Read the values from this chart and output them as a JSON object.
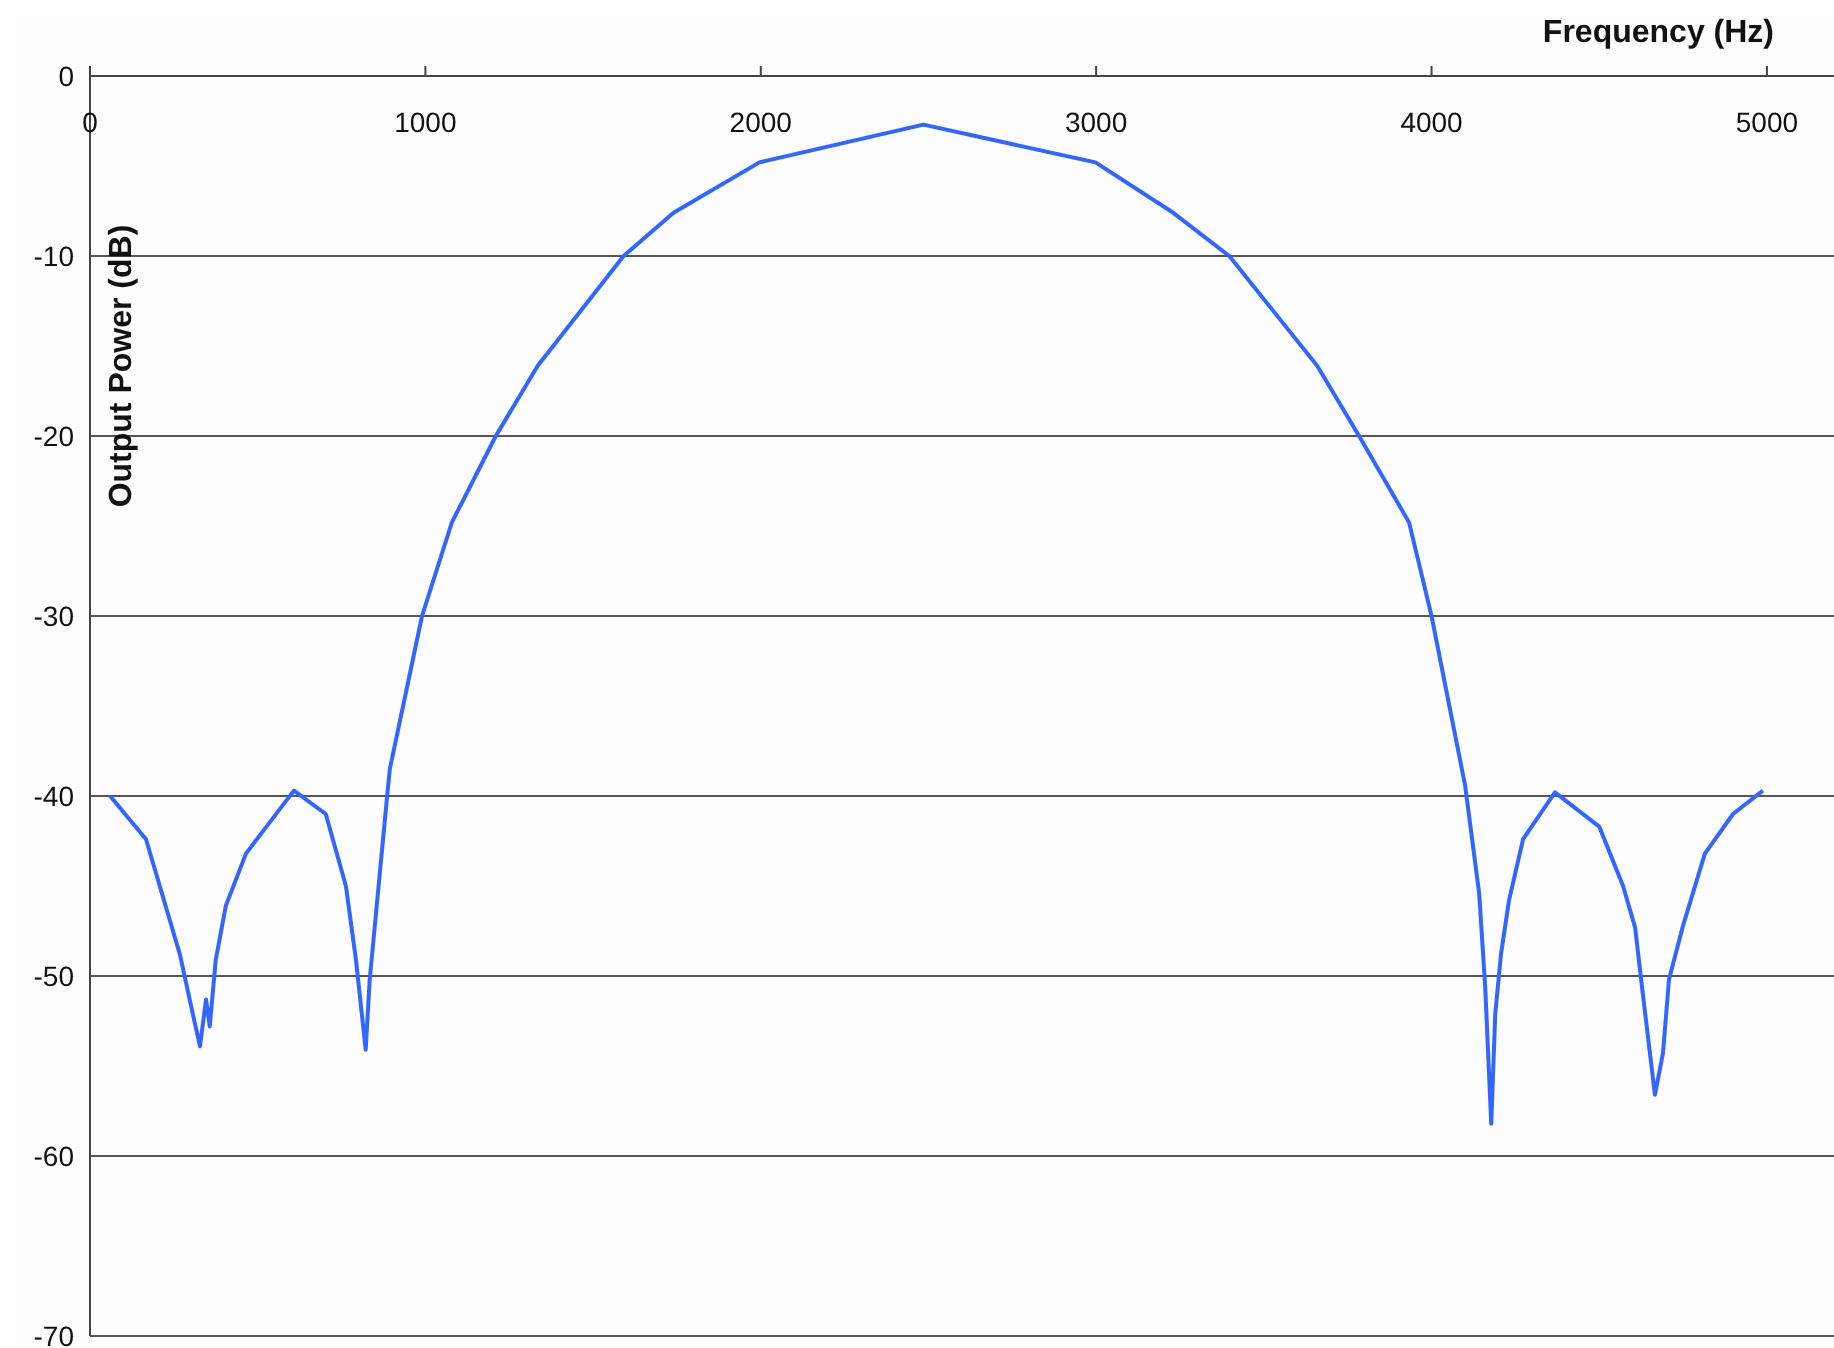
{
  "chart_data": {
    "type": "line",
    "xlabel": "Frequency (Hz)",
    "ylabel": "Output Power (dB)",
    "xlim": [
      0,
      5200
    ],
    "xticks": [
      0,
      1000,
      2000,
      3000,
      4000,
      5000
    ],
    "ylim": [
      -70,
      0
    ],
    "yticks": [
      0,
      -10,
      -20,
      -30,
      -40,
      -50,
      -60,
      -70
    ],
    "grid": "y",
    "marker": "none",
    "line_style": "solid",
    "series": [
      {
        "color": "#3366ff",
        "x": [
          60,
          167,
          268,
          310,
          328,
          346,
          357,
          375,
          405,
          465,
          608,
          703,
          763,
          793,
          822,
          834,
          886,
          894,
          990,
          1079,
          1210,
          1335,
          1591,
          1740,
          1996,
          2485,
          2998,
          3230,
          3397,
          3659,
          3784,
          3933,
          4000,
          4100,
          4142,
          4160,
          4178,
          4190,
          4207,
          4231,
          4273,
          4368,
          4500,
          4571,
          4607,
          4630,
          4666,
          4690,
          4708,
          4750,
          4815,
          4899,
          4988
        ],
        "values": [
          -40,
          -42.4,
          -48.8,
          -52.4,
          -53.9,
          -51.3,
          -52.8,
          -49.1,
          -46.1,
          -43.2,
          -39.7,
          -41,
          -45,
          -49.1,
          -54.1,
          -50.2,
          -40,
          -38.5,
          -30,
          -24.8,
          -20,
          -16.1,
          -10,
          -7.6,
          -4.8,
          -2.7,
          -4.8,
          -7.6,
          -10,
          -16.1,
          -20,
          -24.8,
          -30,
          -39.4,
          -45.4,
          -50.6,
          -58.2,
          -52.1,
          -48.8,
          -45.8,
          -42.4,
          -39.8,
          -41.7,
          -45,
          -47.3,
          -51,
          -56.6,
          -54.3,
          -50.2,
          -47.2,
          -43.2,
          -41,
          -39.7
        ]
      }
    ]
  }
}
